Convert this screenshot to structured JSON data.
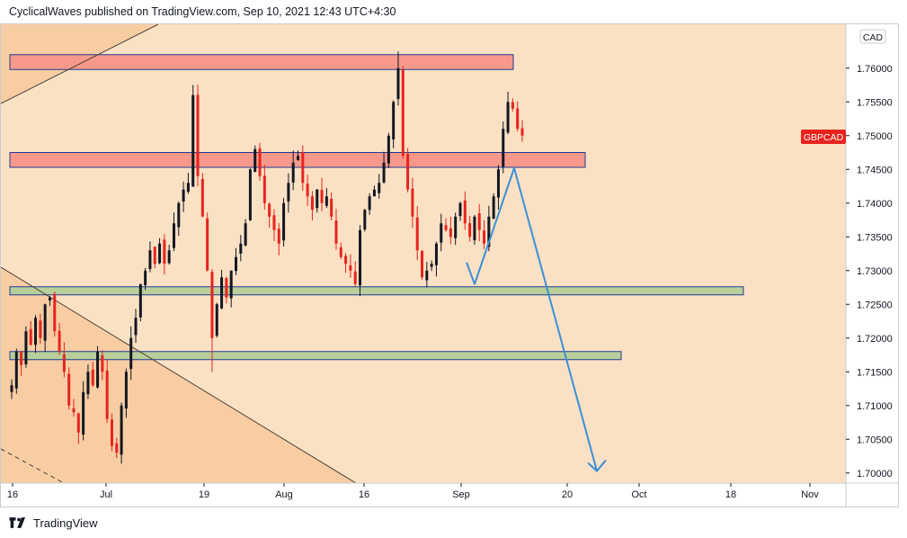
{
  "header": {
    "text": "CyclicalWaves published on TradingView.com, Sep 10, 2021 12:43 UTC+4:30"
  },
  "footer": {
    "brand": "TradingView",
    "logo_icon": "tradingview-logo-icon"
  },
  "chart_data": {
    "type": "candlestick",
    "symbol_label": "GBPCAD",
    "currency_label": "CAD",
    "y_axis": {
      "ylim": [
        1.6985,
        1.7665
      ],
      "tick_labels": [
        "1.70000",
        "1.70500",
        "1.71000",
        "1.71500",
        "1.72000",
        "1.72500",
        "1.73000",
        "1.73500",
        "1.74000",
        "1.74500",
        "1.75000",
        "1.75500",
        "1.76000"
      ]
    },
    "x_axis": {
      "tick_labels": [
        "16",
        "Jul",
        "19",
        "Aug",
        "16",
        "Sep",
        "20",
        "Oct",
        "18",
        "Nov"
      ]
    },
    "colors": {
      "background": "#fbe1c4",
      "down_candle": "#e8231e",
      "up_candle": "#131722",
      "resistance_zone": "#f7998a",
      "support_zone": "#b8cf9a",
      "projection_line": "#3a8fd8",
      "badge": "#e8231e"
    },
    "resistance_zones": [
      {
        "low": 1.7598,
        "high": 1.762
      },
      {
        "low": 1.7453,
        "high": 1.7475
      }
    ],
    "support_zones": [
      {
        "low": 1.7264,
        "high": 1.7276
      },
      {
        "low": 1.7168,
        "high": 1.718
      }
    ],
    "projection_path": [
      {
        "x": "Aug 28",
        "y": 1.7312
      },
      {
        "x": "Aug 31",
        "y": 1.728
      },
      {
        "x": "Sep 8",
        "y": 1.7452
      },
      {
        "x": "Sep 27",
        "y": 1.7003
      }
    ],
    "price_series_close": [
      1.713,
      1.718,
      1.716,
      1.721,
      1.719,
      1.723,
      1.72,
      1.725,
      1.726,
      1.721,
      1.718,
      1.715,
      1.71,
      1.709,
      1.706,
      1.712,
      1.715,
      1.713,
      1.718,
      1.715,
      1.708,
      1.704,
      1.703,
      1.71,
      1.715,
      1.72,
      1.723,
      1.728,
      1.73,
      1.733,
      1.731,
      1.734,
      1.731,
      1.733,
      1.737,
      1.74,
      1.742,
      1.743,
      1.756,
      1.744,
      1.738,
      1.73,
      1.72,
      1.725,
      1.729,
      1.726,
      1.73,
      1.732,
      1.734,
      1.737,
      1.745,
      1.748,
      1.744,
      1.74,
      1.738,
      1.736,
      1.734,
      1.74,
      1.743,
      1.746,
      1.747,
      1.743,
      1.741,
      1.739,
      1.742,
      1.74,
      1.741,
      1.738,
      1.734,
      1.732,
      1.731,
      1.73,
      1.728,
      1.736,
      1.739,
      1.741,
      1.742,
      1.743,
      1.746,
      1.75,
      1.755,
      1.76,
      1.747,
      1.742,
      1.738,
      1.733,
      1.729,
      1.73,
      1.731,
      1.734,
      1.737,
      1.736,
      1.735,
      1.738,
      1.74,
      1.737,
      1.735,
      1.738,
      1.736,
      1.734,
      1.738,
      1.741,
      1.745,
      1.751,
      1.755,
      1.754,
      1.751,
      1.75
    ]
  }
}
